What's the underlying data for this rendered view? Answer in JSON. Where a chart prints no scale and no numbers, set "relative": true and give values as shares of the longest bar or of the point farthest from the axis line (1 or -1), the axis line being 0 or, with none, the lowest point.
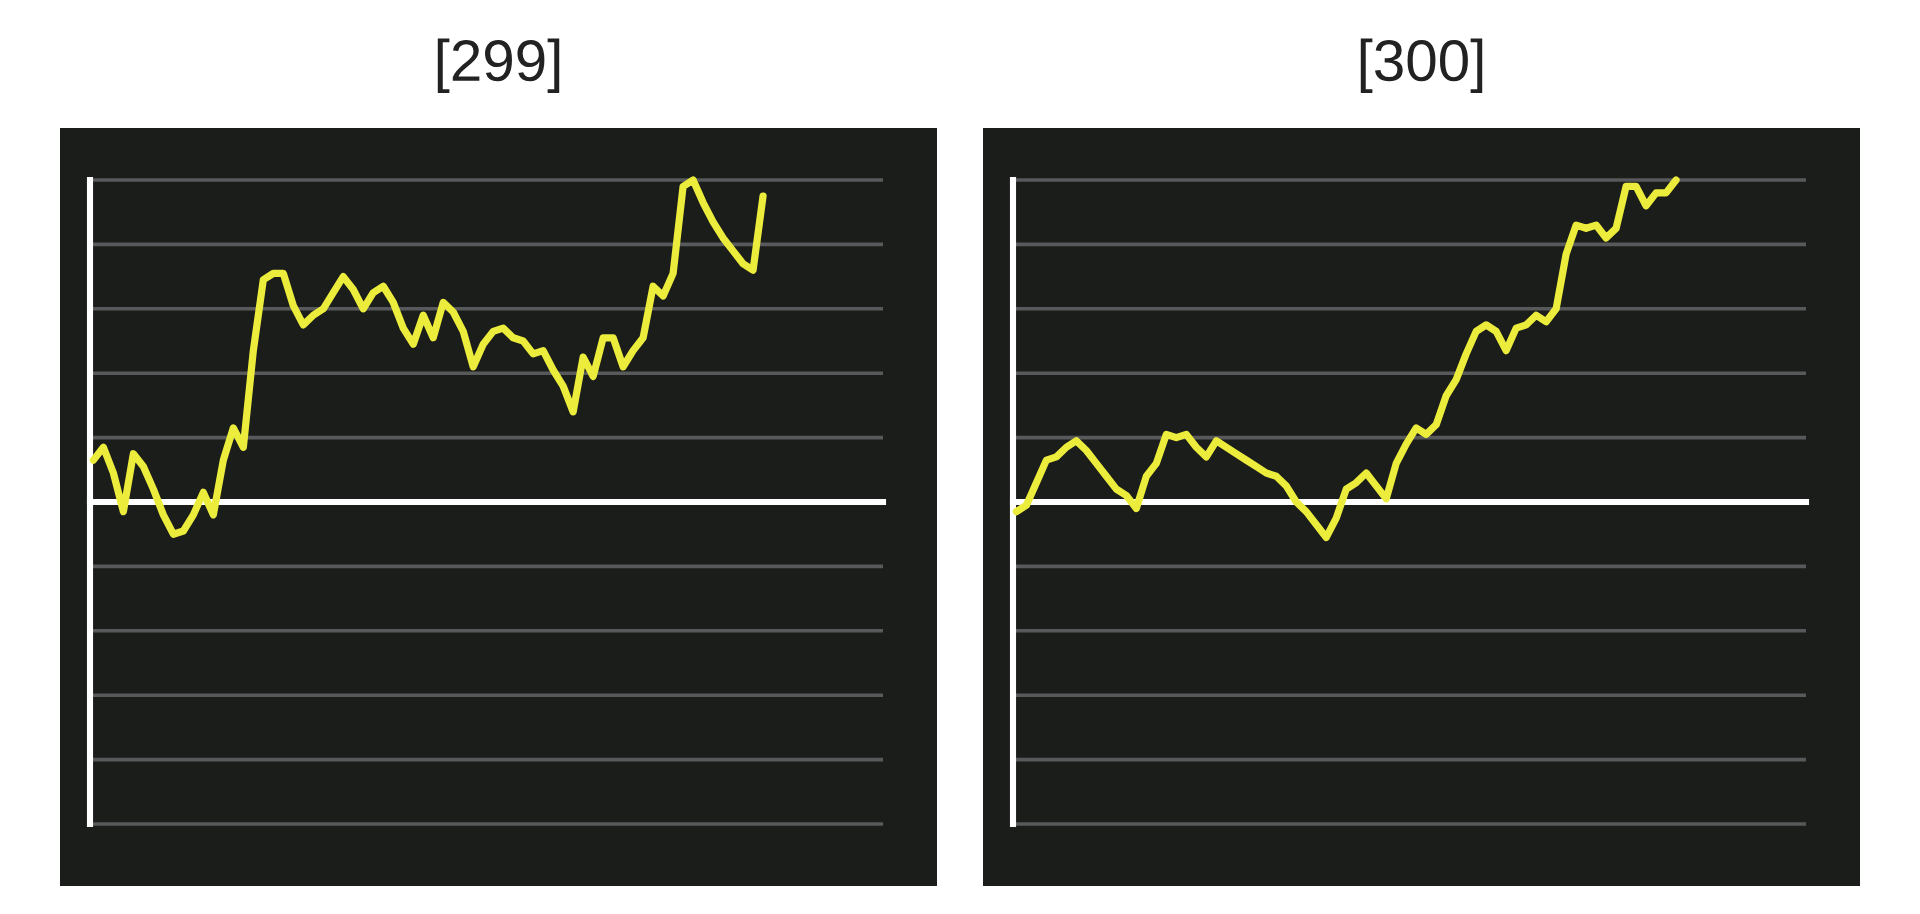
{
  "chart_data": [
    {
      "type": "line",
      "title": "[299]",
      "relative": true,
      "grid": "y",
      "categories": [
        null,
        null,
        null,
        null,
        null,
        null,
        null,
        null,
        null,
        null,
        null,
        null,
        null,
        null,
        null,
        null,
        null,
        null,
        null,
        null,
        null,
        null,
        null,
        null,
        null,
        null,
        null,
        null,
        null,
        null,
        null,
        null,
        null,
        null,
        null,
        null,
        null,
        null,
        null,
        null,
        null,
        null,
        null,
        null,
        null,
        null,
        null,
        null,
        null,
        null,
        null,
        null,
        null,
        null,
        null,
        null,
        null,
        null,
        null,
        null,
        null,
        null,
        null,
        null,
        null,
        null,
        null,
        null,
        null,
        null,
        null,
        null,
        null,
        null,
        null,
        null,
        null,
        null,
        null,
        null
      ],
      "series": [
        {
          "color": "#ecec3c",
          "values": [
            0.13,
            0.17,
            0.09,
            -0.03,
            0.15,
            0.11,
            0.04,
            -0.04,
            -0.1,
            -0.09,
            -0.04,
            0.03,
            -0.04,
            0.13,
            0.23,
            0.17,
            0.47,
            0.69,
            0.71,
            0.71,
            0.61,
            0.55,
            0.58,
            0.6,
            0.65,
            0.7,
            0.66,
            0.6,
            0.65,
            0.67,
            0.62,
            0.54,
            0.49,
            0.58,
            0.51,
            0.62,
            0.59,
            0.53,
            0.42,
            0.49,
            0.53,
            0.54,
            0.51,
            0.5,
            0.46,
            0.47,
            0.41,
            0.36,
            0.28,
            0.45,
            0.39,
            0.51,
            0.51,
            0.42,
            0.47,
            0.51,
            0.67,
            0.64,
            0.71,
            0.98,
            1.0,
            0.93,
            0.87,
            0.82,
            0.78,
            0.74,
            0.72,
            0.95,
            null,
            null,
            null,
            null,
            null,
            null,
            null,
            null,
            null,
            null,
            null,
            null
          ]
        }
      ]
    },
    {
      "type": "line",
      "title": "[300]",
      "relative": true,
      "grid": "y",
      "categories": [
        null,
        null,
        null,
        null,
        null,
        null,
        null,
        null,
        null,
        null,
        null,
        null,
        null,
        null,
        null,
        null,
        null,
        null,
        null,
        null,
        null,
        null,
        null,
        null,
        null,
        null,
        null,
        null,
        null,
        null,
        null,
        null,
        null,
        null,
        null,
        null,
        null,
        null,
        null,
        null,
        null,
        null,
        null,
        null,
        null,
        null,
        null,
        null,
        null,
        null,
        null,
        null,
        null,
        null,
        null,
        null,
        null,
        null,
        null,
        null,
        null,
        null,
        null,
        null,
        null,
        null,
        null,
        null,
        null,
        null,
        null,
        null,
        null,
        null,
        null,
        null,
        null,
        null,
        null,
        null
      ],
      "series": [
        {
          "color": "#ecec3c",
          "values": [
            -0.03,
            -0.01,
            0.06,
            0.13,
            0.14,
            0.17,
            0.19,
            0.16,
            0.12,
            0.08,
            0.04,
            0.02,
            -0.02,
            0.08,
            0.12,
            0.21,
            0.2,
            0.21,
            0.17,
            0.14,
            0.19,
            0.17,
            0.15,
            0.13,
            0.11,
            0.09,
            0.08,
            0.05,
            0.0,
            -0.03,
            -0.07,
            -0.11,
            -0.05,
            0.04,
            0.06,
            0.09,
            0.05,
            0.01,
            0.12,
            0.18,
            0.23,
            0.21,
            0.24,
            0.33,
            0.38,
            0.46,
            0.53,
            0.55,
            0.53,
            0.47,
            0.54,
            0.55,
            0.58,
            0.56,
            0.6,
            0.77,
            0.86,
            0.85,
            0.86,
            0.82,
            0.85,
            0.98,
            0.98,
            0.92,
            0.96,
            0.96,
            1.0,
            null,
            null,
            null,
            null,
            null,
            null,
            null,
            null,
            null,
            null,
            null,
            null,
            null
          ]
        }
      ]
    }
  ]
}
